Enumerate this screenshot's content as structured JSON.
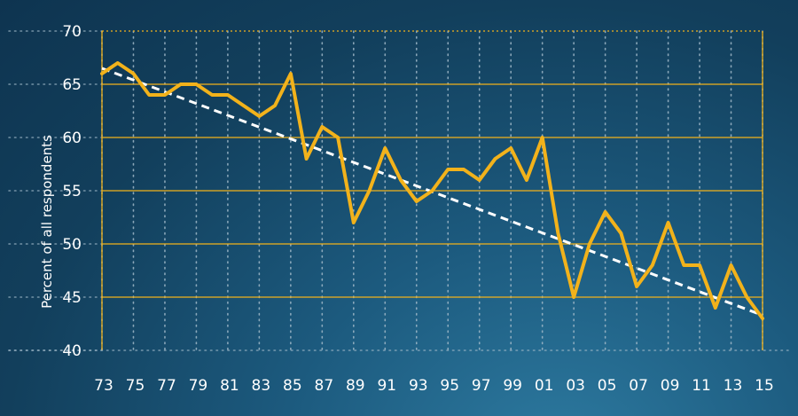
{
  "chart_data": {
    "type": "line",
    "title": "",
    "xlabel": "",
    "ylabel": "Percent of all respondents",
    "ylim": [
      40,
      70
    ],
    "xlim": [
      1973,
      2015
    ],
    "yticks": [
      "40",
      "45",
      "50",
      "55",
      "60",
      "65",
      "70"
    ],
    "xtick_labels": [
      "73",
      "75",
      "77",
      "79",
      "81",
      "83",
      "85",
      "87",
      "89",
      "91",
      "93",
      "95",
      "97",
      "99",
      "01",
      "03",
      "05",
      "07",
      "09",
      "11",
      "13",
      "15"
    ],
    "grid": true,
    "colors": {
      "line": "#f2b21b",
      "trend": "#ffffff",
      "grid": "#f2b21b",
      "vgrid": "#9fb8c8"
    },
    "series": [
      {
        "x": [
          1973,
          1974,
          1975,
          1976,
          1977,
          1978,
          1979,
          1980,
          1981,
          1982,
          1983,
          1984,
          1985,
          1986,
          1987,
          1988,
          1989,
          1990,
          1991,
          1992,
          1993,
          1994,
          1995,
          1996,
          1997,
          1998,
          1999,
          2000,
          2001,
          2002,
          2003,
          2004,
          2005,
          2006,
          2007,
          2008,
          2009,
          2010,
          2011,
          2012,
          2013,
          2014,
          2015
        ],
        "values": [
          66,
          67,
          66,
          64,
          64,
          65,
          65,
          64,
          64,
          63,
          62,
          63,
          66,
          58,
          61,
          60,
          52,
          55,
          59,
          56,
          54,
          55,
          57,
          57,
          56,
          58,
          59,
          56,
          60,
          51,
          45,
          50,
          53,
          51,
          46,
          48,
          52,
          48,
          48,
          44,
          48,
          45,
          43
        ]
      }
    ],
    "trend": {
      "style": "dashed",
      "x": [
        1973,
        2015
      ],
      "values": [
        66.5,
        43.3
      ]
    }
  }
}
